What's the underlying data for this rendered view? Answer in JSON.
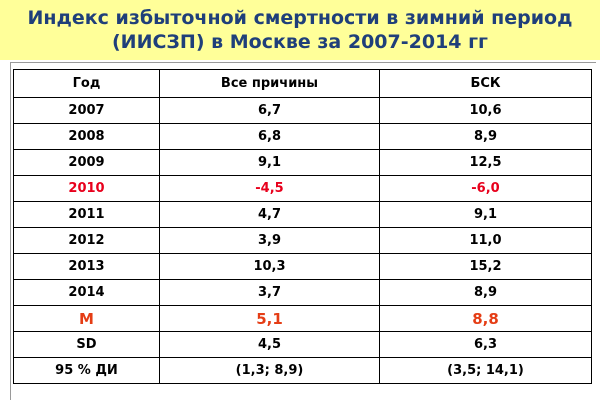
{
  "title": {
    "line1": "Индекс избыточной смертности в зимний период",
    "line2": "(ИИСЗП) в Москве за 2007-2014 гг"
  },
  "table": {
    "headers": [
      "Год",
      "Все причины",
      "БСК"
    ],
    "rows": [
      {
        "cells": [
          "2007",
          "6,7",
          "10,6"
        ],
        "highlight": "none"
      },
      {
        "cells": [
          "2008",
          "6,8",
          "8,9"
        ],
        "highlight": "none"
      },
      {
        "cells": [
          "2009",
          "9,1",
          "12,5"
        ],
        "highlight": "none"
      },
      {
        "cells": [
          "2010",
          "-4,5",
          "-6,0"
        ],
        "highlight": "red"
      },
      {
        "cells": [
          "2011",
          "4,7",
          "9,1"
        ],
        "highlight": "none"
      },
      {
        "cells": [
          "2012",
          "3,9",
          "11,0"
        ],
        "highlight": "none"
      },
      {
        "cells": [
          "2013",
          "10,3",
          "15,2"
        ],
        "highlight": "none"
      },
      {
        "cells": [
          "2014",
          "3,7",
          "8,9"
        ],
        "highlight": "none"
      },
      {
        "cells": [
          "М",
          "5,1",
          "8,8"
        ],
        "highlight": "orange"
      },
      {
        "cells": [
          "SD",
          "4,5",
          "6,3"
        ],
        "highlight": "none"
      },
      {
        "cells": [
          "95 % ДИ",
          "(1,3; 8,9)",
          "(3,5; 14,1)"
        ],
        "highlight": "none"
      }
    ]
  },
  "colors": {
    "title_text": "#1f3f7a",
    "title_band": "#ffff99",
    "highlight_red": "#e8001c",
    "highlight_orange": "#e53d15"
  }
}
